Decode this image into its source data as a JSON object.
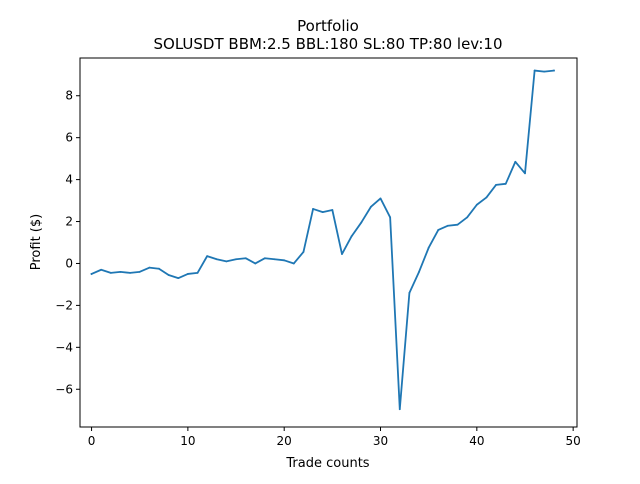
{
  "chart_data": {
    "type": "line",
    "title": "Portfolio",
    "subtitle": "SOLUSDT BBM:2.5 BBL:180 SL:80 TP:80 lev:10",
    "xlabel": "Trade counts",
    "ylabel": "Profit ($)",
    "xlim": [
      -1.2,
      50.4
    ],
    "ylim": [
      -7.8,
      9.8
    ],
    "x_ticks": [
      0,
      10,
      20,
      30,
      40,
      50
    ],
    "y_ticks": [
      -6,
      -4,
      -2,
      0,
      2,
      4,
      6,
      8
    ],
    "x_tick_labels": [
      "0",
      "10",
      "20",
      "30",
      "40",
      "50"
    ],
    "y_tick_labels": [
      "−6",
      "−4",
      "−2",
      "0",
      "2",
      "4",
      "6",
      "8"
    ],
    "grid": false,
    "legend": "none",
    "series": [
      {
        "color": "#1f77b4",
        "x": [
          0,
          1,
          2,
          3,
          4,
          5,
          6,
          7,
          8,
          9,
          10,
          11,
          12,
          13,
          14,
          15,
          16,
          17,
          18,
          19,
          20,
          21,
          22,
          23,
          24,
          25,
          26,
          27,
          28,
          29,
          30,
          31,
          32,
          33,
          34,
          35,
          36,
          37,
          38,
          39,
          40,
          41,
          42,
          43,
          44,
          45,
          46,
          47,
          48
        ],
        "y": [
          -0.5,
          -0.3,
          -0.45,
          -0.4,
          -0.45,
          -0.4,
          -0.2,
          -0.25,
          -0.55,
          -0.7,
          -0.5,
          -0.45,
          0.35,
          0.2,
          0.1,
          0.2,
          0.25,
          0.0,
          0.25,
          0.2,
          0.15,
          0.0,
          0.55,
          2.6,
          2.45,
          2.55,
          0.45,
          1.3,
          1.95,
          2.7,
          3.1,
          2.2,
          -6.95,
          -1.4,
          -0.4,
          0.75,
          1.6,
          1.8,
          1.85,
          2.2,
          2.8,
          3.15,
          3.75,
          3.8,
          4.85,
          4.3,
          9.2,
          9.15,
          9.2
        ]
      }
    ]
  }
}
